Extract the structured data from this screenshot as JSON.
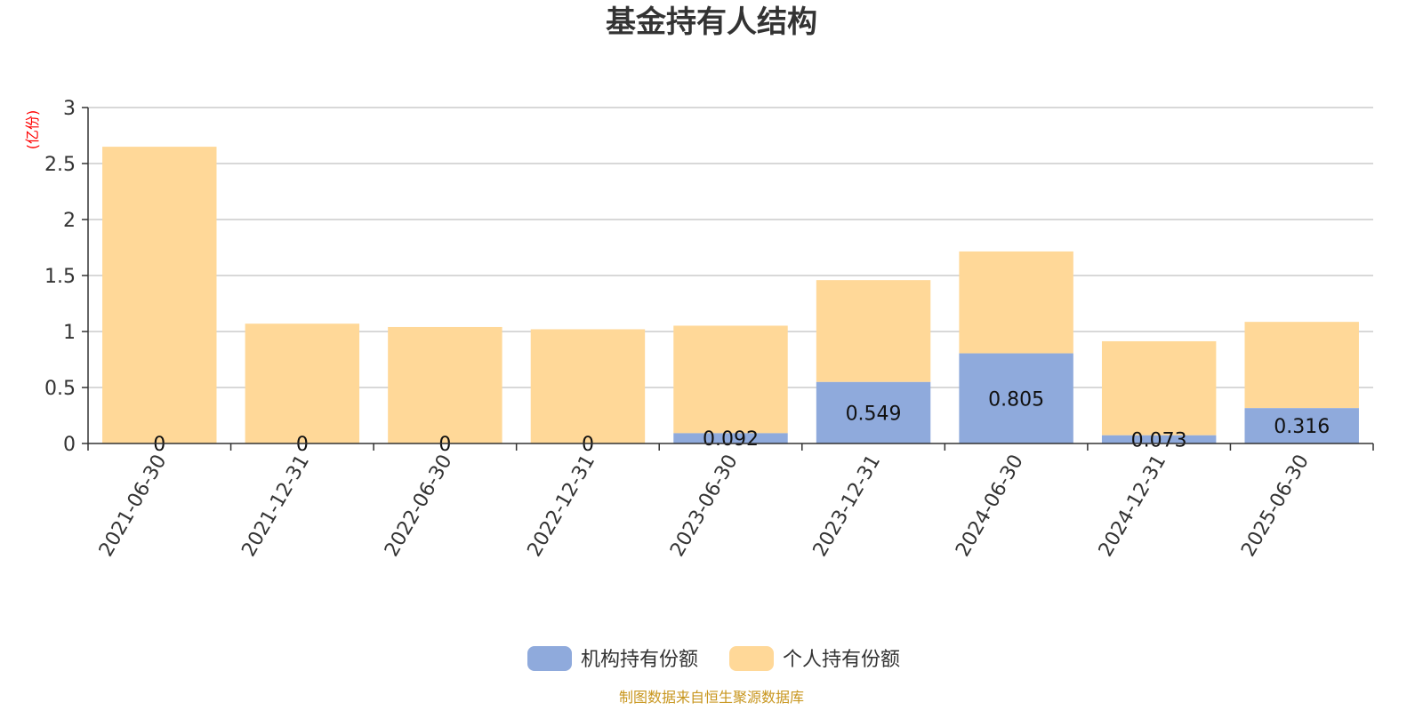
{
  "chart_data": {
    "type": "bar",
    "stacked": true,
    "title": "基金持有人结构",
    "unit_label": "(亿份)",
    "categories": [
      "2021-06-30",
      "2021-12-31",
      "2022-06-30",
      "2022-12-31",
      "2023-06-30",
      "2023-12-31",
      "2024-06-30",
      "2024-12-31",
      "2025-06-30"
    ],
    "series": [
      {
        "name": "机构持有份额",
        "color": "#8faadc",
        "values": [
          0,
          0,
          0,
          0,
          0.092,
          0.549,
          0.805,
          0.073,
          0.316
        ],
        "labels": [
          "0",
          "0",
          "0",
          "0",
          "0.092",
          "0.549",
          "0.805",
          "0.073",
          "0.316"
        ]
      },
      {
        "name": "个人持有份额",
        "color": "#ffd898",
        "values": [
          2.65,
          1.07,
          1.04,
          1.02,
          0.96,
          0.91,
          0.91,
          0.84,
          0.77
        ]
      }
    ],
    "ylim": [
      0,
      3
    ],
    "yticks": [
      "0",
      "0.5",
      "1",
      "1.5",
      "2",
      "2.5",
      "3"
    ],
    "grid": true,
    "legend_position": "bottom"
  },
  "footer": {
    "source": "制图数据来自恒生聚源数据库"
  }
}
